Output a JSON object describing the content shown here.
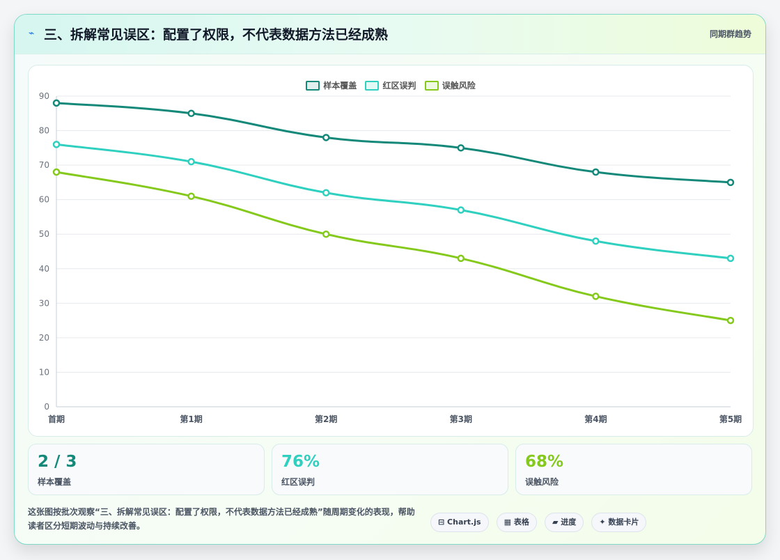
{
  "header": {
    "icon": "lightning-icon",
    "title": "三、拆解常见误区：配置了权限，不代表数据方法已经成熟",
    "right_label": "同期群趋势"
  },
  "chart_data": {
    "type": "line",
    "categories": [
      "首期",
      "第1期",
      "第2期",
      "第3期",
      "第4期",
      "第5期"
    ],
    "ylim": [
      0,
      90
    ],
    "yticks": [
      0,
      10,
      20,
      30,
      40,
      50,
      60,
      70,
      80,
      90
    ],
    "grid": true,
    "legend_position": "top-center",
    "series": [
      {
        "name": "样本覆盖",
        "color": "#14897a",
        "values": [
          88,
          85,
          78,
          75,
          68,
          65
        ]
      },
      {
        "name": "红区误判",
        "color": "#2fd0bf",
        "values": [
          76,
          71,
          62,
          57,
          48,
          43
        ]
      },
      {
        "name": "误触风险",
        "color": "#84c91c",
        "values": [
          68,
          61,
          50,
          43,
          32,
          25
        ]
      }
    ]
  },
  "stats": [
    {
      "value": "2 / 3",
      "label": "样本覆盖",
      "color": "#14897a"
    },
    {
      "value": "76%",
      "label": "红区误判",
      "color": "#2fd0bf"
    },
    {
      "value": "68%",
      "label": "误触风险",
      "color": "#84c91c"
    }
  ],
  "footer": {
    "text": "这张图按批次观察“三、拆解常见误区：配置了权限，不代表数据方法已经成熟”随周期变化的表现，帮助读者区分短期波动与持续改善。",
    "tags": [
      "⊟ Chart.js",
      "▦ 表格",
      "▰ 进度",
      "✦ 数据卡片"
    ]
  }
}
